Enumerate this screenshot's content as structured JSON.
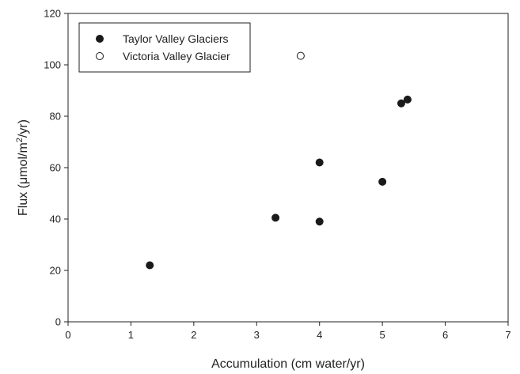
{
  "chart_data": {
    "type": "scatter",
    "xlabel": "Accumulation (cm water/yr)",
    "ylabel_parts": [
      "Flux (",
      "μ",
      "mol/m",
      "2",
      "/yr)"
    ],
    "xlim": [
      0,
      7
    ],
    "ylim": [
      0,
      120
    ],
    "x_ticks": [
      "0",
      "1",
      "2",
      "3",
      "4",
      "5",
      "6",
      "7"
    ],
    "y_ticks": [
      "0",
      "20",
      "40",
      "60",
      "80",
      "100",
      "120"
    ],
    "grid": false,
    "legend_position": "top-left",
    "series": [
      {
        "name": "Taylor Valley Glaciers",
        "marker": "filled-circle",
        "color": "#1a1a1a",
        "points": [
          {
            "x": 1.3,
            "y": 22
          },
          {
            "x": 3.3,
            "y": 40.5
          },
          {
            "x": 4.0,
            "y": 39
          },
          {
            "x": 4.0,
            "y": 62
          },
          {
            "x": 5.0,
            "y": 54.5
          },
          {
            "x": 5.3,
            "y": 85
          },
          {
            "x": 5.4,
            "y": 86.5
          }
        ]
      },
      {
        "name": "Victoria Valley Glacier",
        "marker": "open-circle",
        "color": "#1a1a1a",
        "points": [
          {
            "x": 3.7,
            "y": 103.5
          }
        ]
      }
    ]
  }
}
